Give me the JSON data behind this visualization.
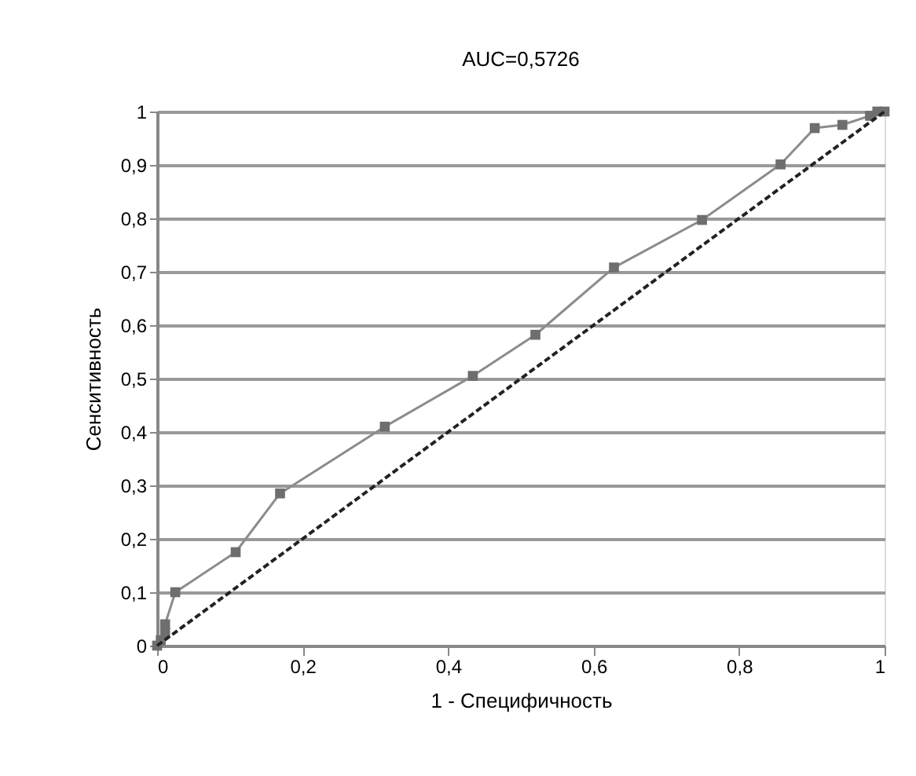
{
  "chart_data": {
    "type": "line",
    "title": "AUC=0,5726",
    "xlabel": "1 - Специфичность",
    "ylabel": "Сенситивность",
    "xlim": [
      0,
      1
    ],
    "ylim": [
      0,
      1
    ],
    "xticks": [
      {
        "value": 0,
        "label": "0"
      },
      {
        "value": 0.2,
        "label": "0,2"
      },
      {
        "value": 0.4,
        "label": "0,4"
      },
      {
        "value": 0.6,
        "label": "0,6"
      },
      {
        "value": 0.8,
        "label": "0,8"
      },
      {
        "value": 1,
        "label": "1"
      }
    ],
    "yticks": [
      {
        "value": 0,
        "label": "0"
      },
      {
        "value": 0.1,
        "label": "0,1"
      },
      {
        "value": 0.2,
        "label": "0,2"
      },
      {
        "value": 0.3,
        "label": "0,3"
      },
      {
        "value": 0.4,
        "label": "0,4"
      },
      {
        "value": 0.5,
        "label": "0,5"
      },
      {
        "value": 0.6,
        "label": "0,6"
      },
      {
        "value": 0.7,
        "label": "0,7"
      },
      {
        "value": 0.8,
        "label": "0,8"
      },
      {
        "value": 0.9,
        "label": "0,9"
      },
      {
        "value": 1,
        "label": "1"
      }
    ],
    "grid": "y",
    "series": [
      {
        "color": "#8c8c8c",
        "marker": "square",
        "line_style": "solid",
        "x": [
          0,
          0.005,
          0.011,
          0.011,
          0.025,
          0.108,
          0.169,
          0.313,
          0.434,
          0.52,
          0.628,
          0.749,
          0.857,
          0.904,
          0.942,
          0.98,
          0.99,
          1
        ],
        "values": [
          0,
          0.01,
          0.025,
          0.04,
          0.1,
          0.175,
          0.285,
          0.41,
          0.505,
          0.582,
          0.708,
          0.797,
          0.901,
          0.969,
          0.975,
          0.992,
          1,
          1
        ]
      },
      {
        "color": "#222222",
        "marker": "none",
        "line_style": "dashed",
        "x": [
          0,
          1
        ],
        "values": [
          0,
          1
        ]
      }
    ]
  }
}
